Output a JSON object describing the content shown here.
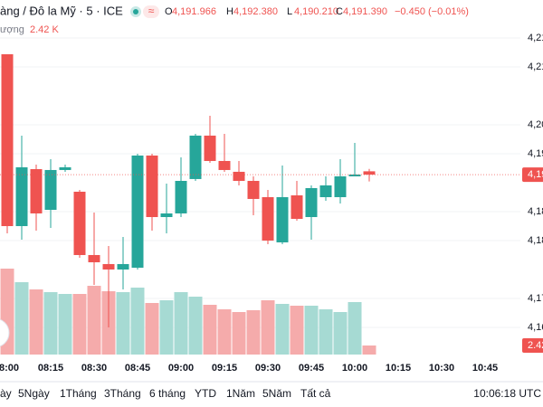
{
  "header": {
    "title": "àng / Đô la Mỹ · 5 · ICE",
    "ohlc": [
      {
        "label": "O",
        "value": "4,191.966"
      },
      {
        "label": "H",
        "value": "4,192.380"
      },
      {
        "label": "L",
        "value": "4,190.210"
      },
      {
        "label": "C",
        "value": "4,191.390"
      }
    ],
    "change": "−0.450 (−0.01%)",
    "volume_label": "ượng",
    "volume_value": "2.42 K"
  },
  "chart_data": {
    "type": "candlestick",
    "up_color": "#26a69a",
    "down_color": "#ef5350",
    "up_volume_color": "#a6dad3",
    "down_volume_color": "#f5abab",
    "open": [
      4212.19,
      4182.5,
      4192.34,
      4185.31,
      4192.19,
      4188.44,
      4177.5,
      4175.94,
      4175,
      4175.31,
      4194.69,
      4184.06,
      4184.69,
      4190.63,
      4198.13,
      4193.75,
      4191.88,
      4190.31,
      4187.5,
      4179.69,
      4187.81,
      4184.06,
      4187.5,
      4187.5,
      4191.09,
      4191.966
    ],
    "high": [
      4212.19,
      4198.13,
      4193.13,
      4194.06,
      4193.13,
      4188.75,
      4184.84,
      4179.06,
      4180.63,
      4195,
      4195,
      4189.84,
      4194.38,
      4198.44,
      4201.56,
      4198.44,
      4193.75,
      4191.09,
      4188.75,
      4192.97,
      4190.31,
      4189.53,
      4191.09,
      4194.06,
      4196.88,
      4192.38
    ],
    "low": [
      4181.25,
      4180.16,
      4181.72,
      4182.19,
      4191.88,
      4177.03,
      4172.34,
      4165,
      4171.56,
      4175,
      4181.72,
      4181.25,
      4184.06,
      4190.31,
      4193.44,
      4191.88,
      4189.53,
      4184.38,
      4179.38,
      4179.38,
      4183.44,
      4180.16,
      4186.88,
      4186.41,
      4191.09,
      4190.21
    ],
    "close": [
      4182.5,
      4192.66,
      4184.69,
      4192.19,
      4192.66,
      4177.5,
      4176.25,
      4175,
      4175.94,
      4194.69,
      4184.06,
      4184.69,
      4190.31,
      4198.13,
      4193.75,
      4192.19,
      4190.31,
      4187.19,
      4180,
      4187.5,
      4183.75,
      4189.06,
      4189.53,
      4191.09,
      4191.41,
      4191.39
    ],
    "volume": [
      22990,
      19360,
      17424,
      16698,
      16214,
      16214,
      18392,
      16940,
      16698,
      17908,
      13794,
      14520,
      16698,
      15488,
      13310,
      12100,
      11374,
      11858,
      14520,
      13552,
      13068,
      13068,
      12100,
      11374,
      14036,
      2420
    ],
    "ylim": [
      4160.31,
      4221.56
    ],
    "yticks": [
      {
        "value": 4215,
        "label": "4,21"
      },
      {
        "value": 4210,
        "label": "4,21"
      },
      {
        "value": 4200,
        "label": "4,20"
      },
      {
        "value": 4195,
        "label": "4,19"
      },
      {
        "value": 4185,
        "label": "4,18"
      },
      {
        "value": 4180,
        "label": "4,18"
      },
      {
        "value": 4170,
        "label": "4,17"
      },
      {
        "value": 4165,
        "label": "4,16"
      }
    ],
    "xlim": [
      -0.5,
      37
    ],
    "xticks": [
      {
        "value": 0,
        "label": "8:00"
      },
      {
        "value": 3,
        "label": "08:15"
      },
      {
        "value": 6,
        "label": "08:30"
      },
      {
        "value": 9,
        "label": "08:45"
      },
      {
        "value": 12,
        "label": "09:00"
      },
      {
        "value": 15,
        "label": "09:15"
      },
      {
        "value": 18,
        "label": "09:30"
      },
      {
        "value": 21,
        "label": "09:45"
      },
      {
        "value": 24,
        "label": "10:00"
      },
      {
        "value": 27,
        "label": "10:15"
      },
      {
        "value": 30,
        "label": "10:30"
      },
      {
        "value": 33,
        "label": "10:45"
      }
    ],
    "last_price_label": "4,19",
    "last_volume_label": "2.42"
  },
  "toolbar": {
    "ranges": [
      "ày",
      "5Ngày",
      "1Tháng",
      "3Tháng",
      "6 tháng",
      "YTD",
      "1Năm",
      "5Năm",
      "Tất cả"
    ],
    "clock": "10:06:18 UTC"
  }
}
